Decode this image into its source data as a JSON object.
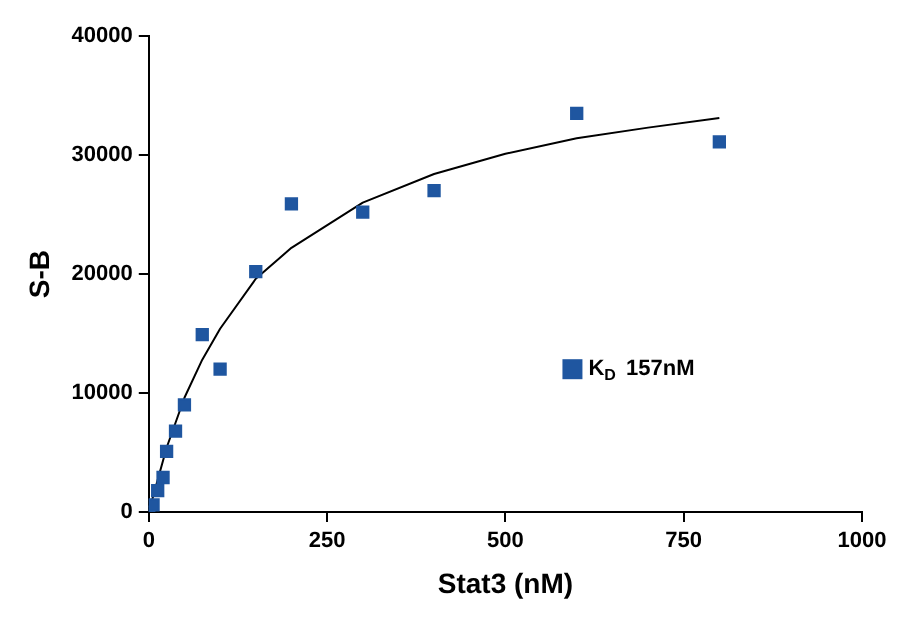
{
  "chart_data": {
    "type": "scatter",
    "xlabel": "Stat3 (nM)",
    "ylabel": "S-B",
    "xlim": [
      0,
      1000
    ],
    "xticks": [
      0,
      250,
      500,
      750,
      1000
    ],
    "ylim": [
      0,
      40000
    ],
    "yticks": [
      0,
      10000,
      20000,
      30000,
      40000
    ],
    "grid": false,
    "legend": "right",
    "marker": "square",
    "series": [
      {
        "name": "K$_{D}$ 157nM",
        "color": "#1f56a0",
        "x": [
          0,
          6,
          12.5,
          20,
          25,
          37.5,
          50,
          75,
          100,
          150,
          200,
          300,
          400,
          600,
          800
        ],
        "values": [
          0,
          600,
          1800,
          2900,
          5100,
          6800,
          9000,
          14900,
          12000,
          20200,
          25900,
          25200,
          27000,
          33500,
          31100
        ]
      },
      {
        "type": "line",
        "color": "#000000",
        "marker": "none",
        "x": [
          0,
          25,
          50,
          75,
          100,
          150,
          200,
          300,
          400,
          500,
          600,
          700,
          800
        ],
        "values": [
          0,
          5400,
          9600,
          12800,
          15400,
          19600,
          22200,
          26000,
          28400,
          30100,
          31400,
          32300,
          33100
        ]
      }
    ]
  }
}
